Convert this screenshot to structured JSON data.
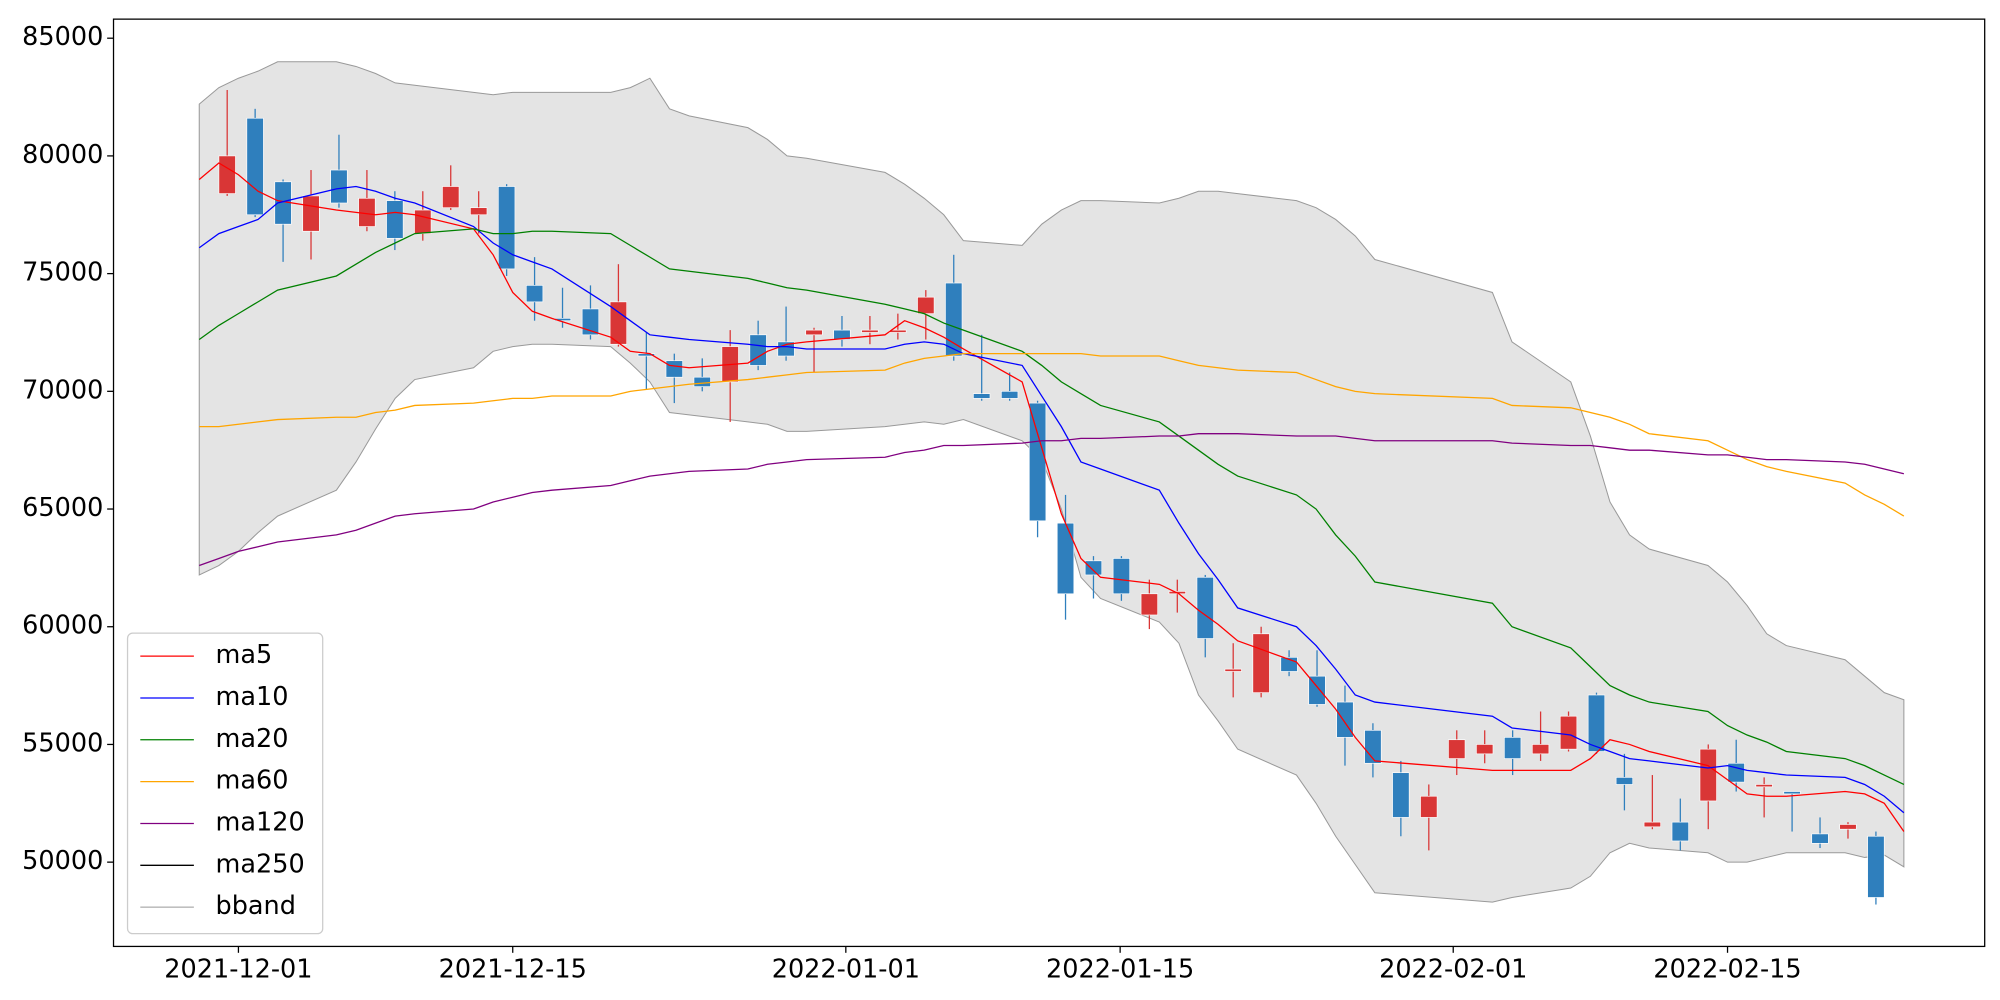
{
  "chart_data": {
    "type": "candlestick",
    "x": [
      "2021-11-29",
      "2021-11-30",
      "2021-12-01",
      "2021-12-02",
      "2021-12-03",
      "2021-12-06",
      "2021-12-07",
      "2021-12-08",
      "2021-12-09",
      "2021-12-10",
      "2021-12-13",
      "2021-12-14",
      "2021-12-15",
      "2021-12-16",
      "2021-12-17",
      "2021-12-20",
      "2021-12-21",
      "2021-12-22",
      "2021-12-23",
      "2021-12-24",
      "2021-12-27",
      "2021-12-28",
      "2021-12-29",
      "2021-12-30",
      "2022-01-03",
      "2022-01-04",
      "2022-01-05",
      "2022-01-06",
      "2022-01-07",
      "2022-01-10",
      "2022-01-11",
      "2022-01-12",
      "2022-01-13",
      "2022-01-14",
      "2022-01-17",
      "2022-01-18",
      "2022-01-19",
      "2022-01-20",
      "2022-01-21",
      "2022-01-24",
      "2022-01-25",
      "2022-01-26",
      "2022-01-27",
      "2022-01-28",
      "2022-02-03",
      "2022-02-04",
      "2022-02-07",
      "2022-02-08",
      "2022-02-09",
      "2022-02-10",
      "2022-02-11",
      "2022-02-14",
      "2022-02-15",
      "2022-02-16",
      "2022-02-17",
      "2022-02-18",
      "2022-02-21",
      "2022-02-22",
      "2022-02-23",
      "2022-02-24"
    ],
    "xlim": [
      "2021-11-24T15:00:00Z",
      "2022-02-28T03:00:00Z"
    ],
    "xticks": [
      "2021-12-01",
      "2021-12-15",
      "2022-01-01",
      "2022-01-15",
      "2022-02-01",
      "2022-02-15"
    ],
    "ylim": [
      46420,
      85810
    ],
    "yticks": [
      50000,
      55000,
      60000,
      65000,
      70000,
      75000,
      80000,
      85000
    ],
    "candles": {
      "up_color": "#d93636",
      "down_color": "#2f7fbd",
      "open": [
        78400,
        81600,
        78900,
        76800,
        79400,
        77000,
        78100,
        76700,
        77800,
        77500,
        78700,
        74500,
        73100,
        73500,
        72000,
        71600,
        71300,
        70600,
        70400,
        72400,
        72100,
        72400,
        72600,
        72500,
        72500,
        73300,
        74600,
        69900,
        70000,
        69500,
        64400,
        62800,
        62900,
        60500,
        61400,
        62100,
        58100,
        57200,
        58700,
        57900,
        56800,
        55600,
        53800,
        51900,
        54400,
        54600,
        55300,
        54600,
        54800,
        57100,
        53600,
        51500,
        51700,
        52600,
        54200,
        53200,
        53000,
        51200,
        51400,
        51100
      ],
      "high": [
        82800,
        82000,
        79000,
        79400,
        80900,
        79400,
        78500,
        78500,
        79600,
        78500,
        78800,
        75700,
        74400,
        74500,
        75400,
        72500,
        71600,
        71400,
        72600,
        73000,
        73600,
        72700,
        73200,
        73200,
        73300,
        74300,
        75800,
        72400,
        70800,
        69600,
        65600,
        63000,
        63000,
        62000,
        62000,
        62200,
        59300,
        60000,
        59000,
        59000,
        57500,
        55900,
        54300,
        53300,
        55600,
        55600,
        55600,
        56400,
        56400,
        57200,
        54600,
        53700,
        52700,
        55000,
        55200,
        53600,
        53000,
        51900,
        51700,
        51300
      ],
      "low": [
        78300,
        77400,
        75500,
        75600,
        77800,
        76800,
        76000,
        76400,
        77700,
        76700,
        74900,
        73000,
        72700,
        72200,
        71900,
        70100,
        69500,
        70000,
        68700,
        70900,
        71300,
        70800,
        71900,
        72000,
        72200,
        72200,
        71300,
        69600,
        69600,
        63800,
        60300,
        61200,
        61100,
        59900,
        60600,
        58700,
        57000,
        57000,
        57900,
        56600,
        54100,
        53600,
        51100,
        50500,
        53700,
        54200,
        53700,
        54300,
        54700,
        54600,
        52200,
        51400,
        50500,
        51400,
        53000,
        51900,
        51300,
        50600,
        51000,
        48200
      ],
      "close": [
        80000,
        77500,
        77100,
        78300,
        78000,
        78200,
        76500,
        77700,
        78700,
        77800,
        75200,
        73800,
        73000,
        72400,
        73800,
        71500,
        70600,
        70200,
        71900,
        71100,
        71500,
        72600,
        72200,
        72600,
        72600,
        74000,
        71500,
        69700,
        69700,
        64500,
        61400,
        62200,
        61400,
        61400,
        61500,
        59500,
        58200,
        59700,
        58100,
        56700,
        55300,
        54200,
        51900,
        52800,
        55200,
        55000,
        54400,
        55000,
        56200,
        54700,
        53300,
        51700,
        50900,
        54800,
        53400,
        53300,
        52900,
        50800,
        51600,
        48500
      ]
    },
    "series": [
      {
        "name": "ma5",
        "color": "red",
        "values": [
          79000,
          79700,
          79200,
          78500,
          78100,
          77700,
          77600,
          77500,
          77600,
          77500,
          76900,
          75800,
          74200,
          73400,
          73100,
          72300,
          71700,
          71600,
          71100,
          71000,
          71200,
          71700,
          72000,
          72100,
          72400,
          73000,
          72700,
          72300,
          71800,
          70400,
          67600,
          64800,
          62900,
          62100,
          61800,
          61400,
          60700,
          60100,
          59400,
          58500,
          57500,
          56500,
          55300,
          54300,
          53900,
          53900,
          53900,
          54400,
          55200,
          55000,
          54700,
          54100,
          53500,
          52900,
          52800,
          52800,
          53000,
          52900,
          52500,
          51300
        ]
      },
      {
        "name": "ma10",
        "color": "blue",
        "values": [
          76100,
          76700,
          77000,
          77300,
          78000,
          78600,
          78700,
          78500,
          78200,
          78000,
          77000,
          76300,
          75800,
          75500,
          75200,
          73600,
          73000,
          72400,
          72300,
          72200,
          72000,
          71900,
          71900,
          71800,
          71800,
          72000,
          72100,
          72000,
          71600,
          71100,
          69800,
          68500,
          67000,
          66700,
          65800,
          64400,
          63100,
          62000,
          60800,
          60000,
          59200,
          58200,
          57100,
          56800,
          56200,
          55700,
          55400,
          55000,
          54700,
          54400,
          54300,
          54000,
          54100,
          53900,
          53800,
          53700,
          53600,
          53300,
          52800,
          52100
        ]
      },
      {
        "name": "ma20",
        "color": "green",
        "values": [
          72200,
          72800,
          73300,
          73800,
          74300,
          74900,
          75400,
          75900,
          76300,
          76700,
          76900,
          76700,
          76700,
          76800,
          76800,
          76700,
          76200,
          75700,
          75200,
          75100,
          74800,
          74600,
          74400,
          74300,
          73700,
          73500,
          73300,
          72900,
          72600,
          71700,
          71100,
          70400,
          69900,
          69400,
          68700,
          68100,
          67500,
          66900,
          66400,
          65600,
          65000,
          63900,
          63000,
          61900,
          61000,
          60000,
          59100,
          58300,
          57500,
          57100,
          56800,
          56400,
          55800,
          55400,
          55100,
          54700,
          54400,
          54100,
          53700,
          53300
        ]
      },
      {
        "name": "ma60",
        "color": "orange",
        "values": [
          68500,
          68500,
          68600,
          68700,
          68800,
          68900,
          68900,
          69100,
          69200,
          69400,
          69500,
          69600,
          69700,
          69700,
          69800,
          69800,
          70000,
          70100,
          70200,
          70300,
          70500,
          70600,
          70700,
          70800,
          70900,
          71200,
          71400,
          71500,
          71600,
          71600,
          71600,
          71600,
          71600,
          71500,
          71500,
          71300,
          71100,
          71000,
          70900,
          70800,
          70500,
          70200,
          70000,
          69900,
          69700,
          69400,
          69300,
          69100,
          68900,
          68600,
          68200,
          67900,
          67500,
          67100,
          66800,
          66600,
          66100,
          65600,
          65200,
          64700
        ]
      },
      {
        "name": "ma120",
        "color": "purple",
        "values": [
          62600,
          62900,
          63200,
          63400,
          63600,
          63900,
          64100,
          64400,
          64700,
          64800,
          65000,
          65300,
          65500,
          65700,
          65800,
          66000,
          66200,
          66400,
          66500,
          66600,
          66700,
          66900,
          67000,
          67100,
          67200,
          67400,
          67500,
          67700,
          67700,
          67800,
          67900,
          67900,
          68000,
          68000,
          68100,
          68100,
          68200,
          68200,
          68200,
          68100,
          68100,
          68100,
          68000,
          67900,
          67900,
          67800,
          67700,
          67700,
          67600,
          67500,
          67500,
          67300,
          67300,
          67200,
          67100,
          67100,
          67000,
          66900,
          66700,
          66500
        ]
      },
      {
        "name": "ma250",
        "color": "black",
        "values": [
          null,
          null,
          null,
          null,
          null,
          null,
          null,
          null,
          null,
          null,
          null,
          null,
          null,
          null,
          null,
          null,
          null,
          null,
          null,
          null,
          null,
          null,
          null,
          null,
          null,
          null,
          null,
          null,
          null,
          null,
          null,
          null,
          null,
          null,
          null,
          null,
          null,
          null,
          null,
          null,
          null,
          null,
          null,
          null,
          null,
          null,
          null,
          null,
          null,
          null,
          null,
          null,
          null,
          null,
          null,
          null,
          null,
          null,
          null,
          null
        ]
      }
    ],
    "band": {
      "name": "bband",
      "color": "#e4e4e4",
      "edge_color": "#999999",
      "upper": [
        82200,
        82900,
        83300,
        83600,
        84000,
        84000,
        83800,
        83500,
        83100,
        83000,
        82700,
        82600,
        82700,
        82700,
        82700,
        82700,
        82900,
        83300,
        82000,
        81700,
        81200,
        80700,
        80000,
        79900,
        79300,
        78800,
        78200,
        77500,
        76400,
        76200,
        77100,
        77700,
        78100,
        78100,
        78000,
        78200,
        78500,
        78500,
        78400,
        78100,
        77800,
        77300,
        76600,
        75600,
        74200,
        72100,
        70400,
        68100,
        65300,
        63900,
        63300,
        62600,
        61900,
        60900,
        59700,
        59200,
        58600,
        57900,
        57200,
        56900
      ],
      "lower": [
        62200,
        62600,
        63200,
        64000,
        64700,
        65800,
        67000,
        68400,
        69700,
        70500,
        71000,
        71700,
        71900,
        72000,
        72000,
        71900,
        71200,
        70400,
        69100,
        69000,
        68700,
        68600,
        68300,
        68300,
        68500,
        68600,
        68700,
        68600,
        68800,
        67900,
        67100,
        65000,
        62100,
        61200,
        60200,
        59300,
        57100,
        56000,
        54800,
        53700,
        52500,
        51100,
        49900,
        48700,
        48300,
        48500,
        48900,
        49400,
        50400,
        50800,
        50600,
        50400,
        50000,
        50000,
        50200,
        50400,
        50400,
        50200,
        50300,
        49800
      ]
    },
    "legend": "lower left"
  }
}
